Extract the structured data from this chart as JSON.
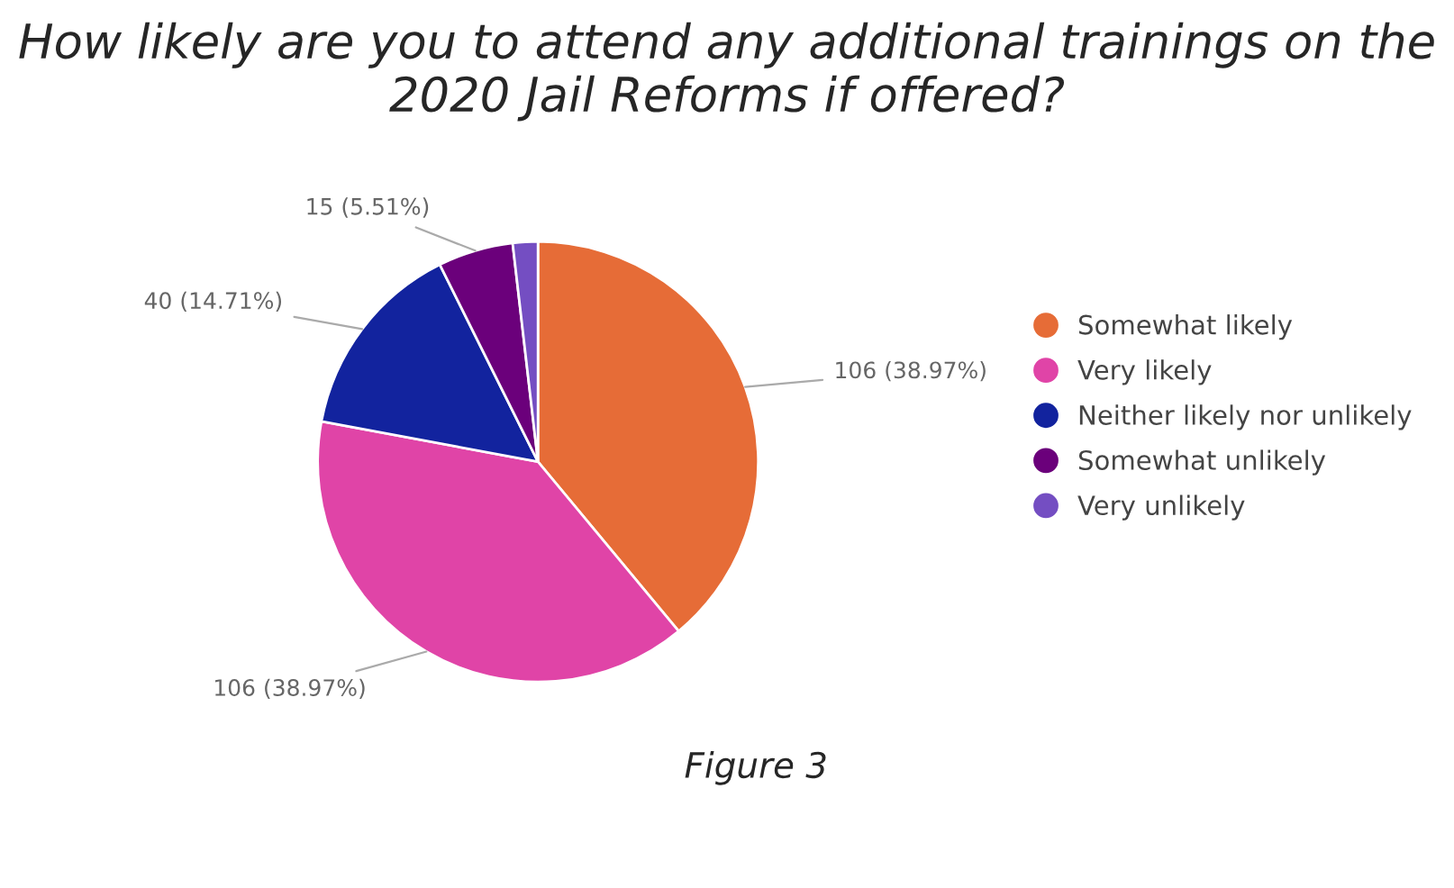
{
  "chart_data": {
    "type": "pie",
    "title": "How likely are you to attend any additional trainings on the 2020 Jail Reforms if offered?",
    "categories": [
      "Somewhat likely",
      "Very likely",
      "Neither likely nor unlikely",
      "Somewhat unlikely",
      "Very unlikely"
    ],
    "values": [
      106,
      106,
      40,
      15,
      5
    ],
    "value_labels": [
      "106 (38.97%)",
      "106 (38.97%)",
      "40 (14.71%)",
      "15 (5.51%)",
      null
    ],
    "colors": [
      "#e66c37",
      "#e044a7",
      "#12239e",
      "#6b007b",
      "#744ec2"
    ],
    "legend": "right",
    "annotations": [
      "Figure 3"
    ]
  }
}
